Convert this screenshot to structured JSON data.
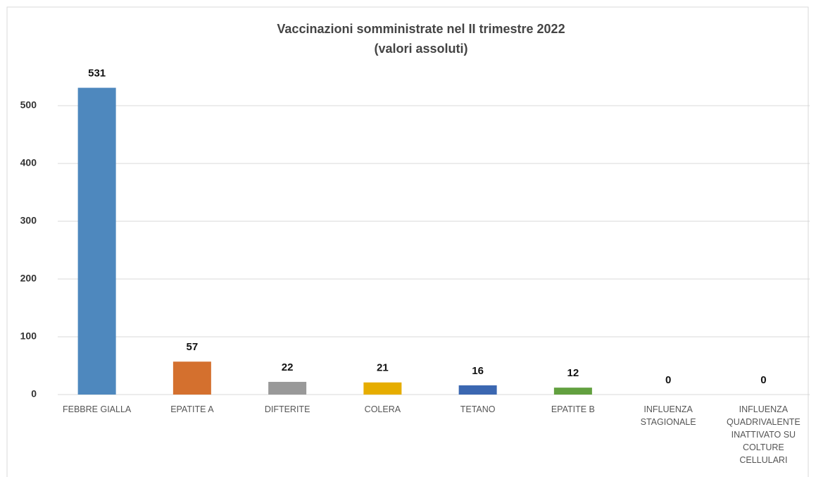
{
  "chart_data": {
    "type": "bar",
    "title": [
      "Vaccinazioni somministrate nel II trimestre 2022",
      "(valori assoluti)"
    ],
    "categories": [
      "FEBBRE GIALLA",
      "EPATITE A",
      "DIFTERITE",
      "COLERA",
      "TETANO",
      "EPATITE B",
      "INFLUENZA STAGIONALE",
      "INFLUENZA QUADRIVALENTE INATTIVATO SU COLTURE CELLULARI"
    ],
    "values": [
      531,
      57,
      22,
      21,
      16,
      12,
      0,
      0
    ],
    "colors": [
      "#4e88be",
      "#d4702e",
      "#999999",
      "#e6ad00",
      "#3b67b1",
      "#62a03f",
      "#9dc3e6",
      "#f4b183"
    ],
    "ylim": [
      0,
      550
    ],
    "yticks": [
      0,
      100,
      200,
      300,
      400,
      500
    ],
    "grid": true
  }
}
